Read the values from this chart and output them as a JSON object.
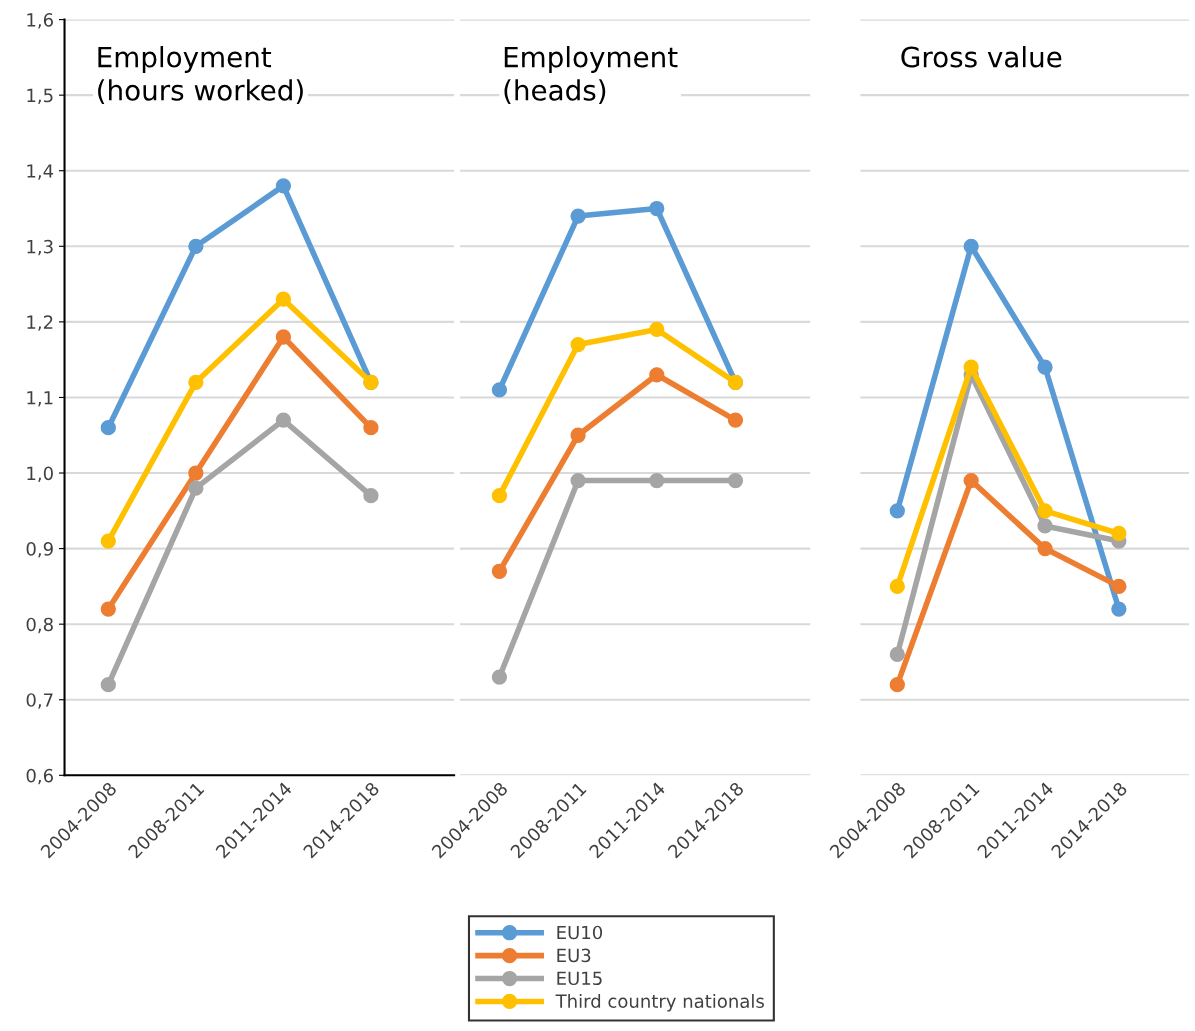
{
  "chart_data": [
    {
      "type": "line",
      "title": "Employment\n(hours worked)",
      "categories": [
        "2004-2008",
        "2008-2011",
        "2011-2014",
        "2014-2018"
      ],
      "ylim": [
        0.6,
        1.6
      ],
      "yticks": [
        {
          "value": 0.6,
          "label": "0,6"
        },
        {
          "value": 0.7,
          "label": "0,7"
        },
        {
          "value": 0.8,
          "label": "0,8"
        },
        {
          "value": 0.9,
          "label": "0,9"
        },
        {
          "value": 1.0,
          "label": "1,0"
        },
        {
          "value": 1.1,
          "label": "1,1"
        },
        {
          "value": 1.2,
          "label": "1,2"
        },
        {
          "value": 1.3,
          "label": "1,3"
        },
        {
          "value": 1.4,
          "label": "1,4"
        },
        {
          "value": 1.5,
          "label": "1,5"
        },
        {
          "value": 1.6,
          "label": "1,6"
        }
      ],
      "grid": "y",
      "marker": "circle",
      "legend": "bottom",
      "series": [
        {
          "name": "EU10",
          "color": "#5b9bd5",
          "values": [
            1.06,
            1.3,
            1.38,
            1.12
          ]
        },
        {
          "name": "EU3",
          "color": "#ed7d31",
          "values": [
            0.82,
            1.0,
            1.18,
            1.06
          ]
        },
        {
          "name": "EU15",
          "color": "#a5a5a5",
          "values": [
            0.72,
            0.98,
            1.07,
            0.97
          ]
        },
        {
          "name": "Third country nationals",
          "color": "#ffc000",
          "values": [
            0.91,
            1.12,
            1.23,
            1.12
          ]
        }
      ]
    },
    {
      "type": "line",
      "title": "Employment\n(heads)",
      "categories": [
        "2004-2008",
        "2008-2011",
        "2011-2014",
        "2014-2018"
      ],
      "ylim": [
        0.6,
        1.6
      ],
      "yticks": [
        0.6,
        0.7,
        0.8,
        0.9,
        1.0,
        1.1,
        1.2,
        1.3,
        1.4,
        1.5,
        1.6
      ],
      "tick_labels": "x",
      "grid": "y",
      "marker": "circle",
      "series": [
        {
          "color": "#5b9bd5",
          "values": [
            1.11,
            1.34,
            1.35,
            1.12
          ]
        },
        {
          "color": "#ed7d31",
          "values": [
            0.87,
            1.05,
            1.13,
            1.07
          ]
        },
        {
          "color": "#a5a5a5",
          "values": [
            0.73,
            0.99,
            0.99,
            0.99
          ]
        },
        {
          "color": "#ffc000",
          "values": [
            0.97,
            1.17,
            1.19,
            1.12
          ]
        }
      ]
    },
    {
      "type": "line",
      "title": "Gross value",
      "categories": [
        "2004-2008",
        "2008-2011",
        "2011-2014",
        "2014-2018"
      ],
      "ylim": [
        0.6,
        1.6
      ],
      "yticks": [
        0.6,
        0.7,
        0.8,
        0.9,
        1.0,
        1.1,
        1.2,
        1.3,
        1.4,
        1.5,
        1.6
      ],
      "tick_labels": "x",
      "grid": "y",
      "marker": "circle",
      "series": [
        {
          "color": "#5b9bd5",
          "values": [
            0.95,
            1.3,
            1.14,
            0.82
          ]
        },
        {
          "color": "#ed7d31",
          "values": [
            0.72,
            0.99,
            0.9,
            0.85
          ]
        },
        {
          "color": "#a5a5a5",
          "values": [
            0.76,
            1.13,
            0.93,
            0.91
          ]
        },
        {
          "color": "#ffc000",
          "values": [
            0.85,
            1.14,
            0.95,
            0.92
          ]
        }
      ]
    }
  ]
}
